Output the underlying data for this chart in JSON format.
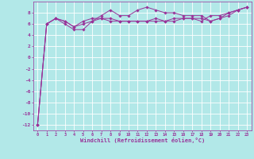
{
  "xlabel": "Windchill (Refroidissement éolien,°C)",
  "background_color": "#b2e8e8",
  "grid_color": "#ffffff",
  "line_color": "#993399",
  "marker_color": "#993399",
  "x_values": [
    0,
    1,
    2,
    3,
    4,
    5,
    6,
    7,
    8,
    9,
    10,
    11,
    12,
    13,
    14,
    15,
    16,
    17,
    18,
    19,
    20,
    21,
    22,
    23
  ],
  "ylim": [
    -13,
    10
  ],
  "xlim": [
    -0.5,
    23.5
  ],
  "yticks": [
    -12,
    -10,
    -8,
    -6,
    -4,
    -2,
    0,
    2,
    4,
    6,
    8
  ],
  "line1": [
    -12,
    6,
    7,
    6,
    5,
    5,
    6.5,
    7.5,
    8.5,
    7.5,
    7.5,
    8.5,
    9,
    8.5,
    8,
    8,
    7.5,
    7.5,
    7.5,
    6.5,
    7,
    8,
    8.5,
    9
  ],
  "line2": [
    -12,
    6,
    7,
    6.5,
    5.5,
    6.5,
    7,
    7,
    7,
    6.5,
    6.5,
    6.5,
    6.5,
    6.5,
    6.5,
    6.5,
    7,
    7,
    6.5,
    7.5,
    7.5,
    8,
    8.5,
    9
  ],
  "line3": [
    -12,
    6,
    7,
    6.5,
    5.5,
    6,
    6.5,
    7,
    6.5,
    6.5,
    6.5,
    6.5,
    6.5,
    7,
    6.5,
    7,
    7,
    7,
    7,
    6.5,
    7,
    7.5,
    8.5,
    9
  ]
}
